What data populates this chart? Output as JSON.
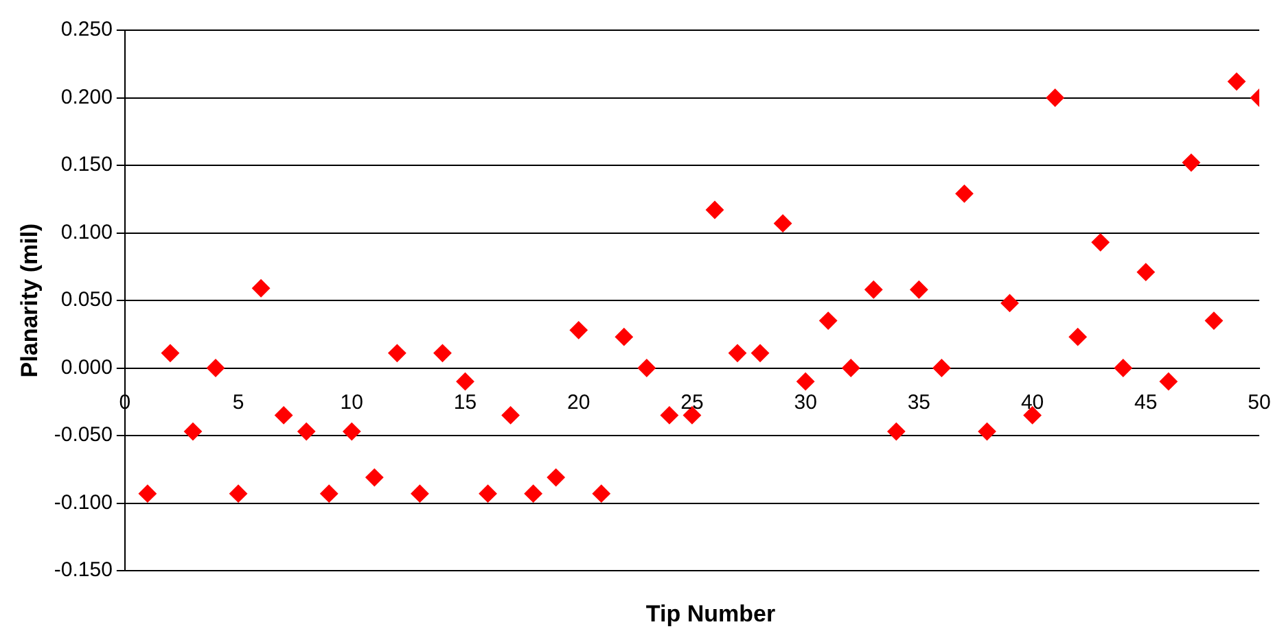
{
  "chart_data": {
    "type": "scatter",
    "xlabel": "Tip Number",
    "ylabel": "Planarity (mil)",
    "x": [
      1,
      2,
      3,
      4,
      5,
      6,
      7,
      8,
      9,
      10,
      11,
      12,
      13,
      14,
      15,
      16,
      17,
      18,
      19,
      20,
      21,
      22,
      23,
      24,
      25,
      26,
      27,
      28,
      29,
      30,
      31,
      32,
      33,
      34,
      35,
      36,
      37,
      38,
      39,
      40,
      41,
      42,
      43,
      44,
      45,
      46,
      47,
      48,
      49,
      50
    ],
    "series": [
      {
        "color": "#ff0000",
        "values": [
          -0.093,
          0.011,
          -0.047,
          0,
          -0.093,
          0.059,
          -0.035,
          -0.047,
          -0.093,
          -0.047,
          -0.081,
          0.011,
          -0.093,
          0.011,
          -0.01,
          -0.093,
          -0.035,
          -0.093,
          -0.081,
          0.028,
          -0.093,
          0.023,
          0,
          -0.035,
          -0.035,
          0.117,
          0.011,
          0.011,
          0.107,
          -0.01,
          0.035,
          0,
          0.058,
          -0.047,
          0.058,
          0,
          0.129,
          -0.047,
          0.048,
          -0.035,
          0.2,
          0.023,
          0.093,
          0,
          0.071,
          -0.01,
          0.152,
          0.035,
          0.212,
          0.2
        ]
      }
    ],
    "xlim": [
      0,
      50
    ],
    "xticks": [
      0,
      5,
      10,
      15,
      20,
      25,
      30,
      35,
      40,
      45,
      50
    ],
    "ylim": [
      -0.15,
      0.25
    ],
    "yticks": [
      {
        "value": -0.15,
        "label": "-0.150"
      },
      {
        "value": -0.1,
        "label": "-0.100"
      },
      {
        "value": -0.05,
        "label": "-0.050"
      },
      {
        "value": 0,
        "label": "0.000"
      },
      {
        "value": 0.05,
        "label": "0.050"
      },
      {
        "value": 0.1,
        "label": "0.100"
      },
      {
        "value": 0.15,
        "label": "0.150"
      },
      {
        "value": 0.2,
        "label": "0.200"
      },
      {
        "value": 0.25,
        "label": "0.250"
      }
    ],
    "grid": "y",
    "legend": false,
    "marker": "diamond"
  }
}
